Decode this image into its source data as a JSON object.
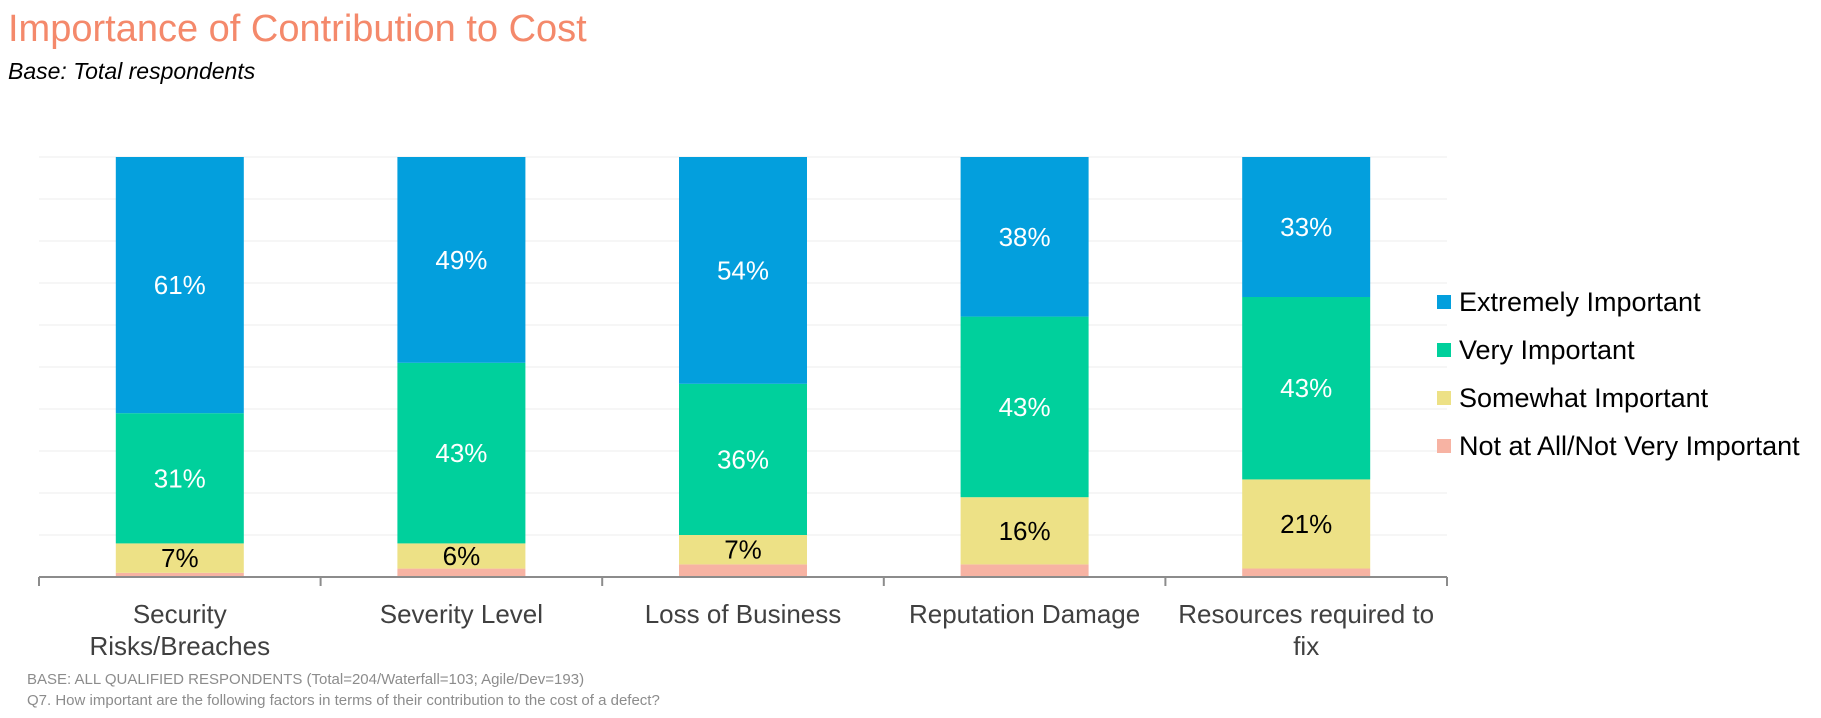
{
  "header": {
    "title": "Importance of Contribution to Cost",
    "subtitle": "Base: Total respondents"
  },
  "footnotes": {
    "base": "BASE: ALL QUALIFIED RESPONDENTS (Total=204/Waterfall=103; Agile/Dev=193)",
    "question": "Q7. How important are the following factors in terms of their contribution to the cost of a defect?"
  },
  "chart_data": {
    "type": "bar",
    "stacked": true,
    "percent_stacked": true,
    "title": "Importance of Contribution to Cost",
    "subtitle": "Base: Total respondents",
    "categories": [
      [
        "Security",
        "Risks/Breaches"
      ],
      [
        "Severity Level"
      ],
      [
        "Loss of Business"
      ],
      [
        "Reputation Damage"
      ],
      [
        "Resources required to",
        "fix"
      ]
    ],
    "series": [
      {
        "name": "Not at All/Not Very Important",
        "color": "#f7b3a3",
        "values": [
          1,
          2,
          3,
          3,
          2
        ],
        "labels": [
          "",
          "",
          "",
          "",
          ""
        ]
      },
      {
        "name": "Somewhat Important",
        "color": "#ede186",
        "values": [
          7,
          6,
          7,
          16,
          21
        ],
        "labels": [
          "7%",
          "6%",
          "7%",
          "16%",
          "21%"
        ],
        "label_color": "#000000"
      },
      {
        "name": "Very Important",
        "color": "#00d09c",
        "values": [
          31,
          43,
          36,
          43,
          43
        ],
        "labels": [
          "31%",
          "43%",
          "36%",
          "43%",
          "43%"
        ],
        "label_color": "#ffffff"
      },
      {
        "name": "Extremely Important",
        "color": "#039fdd",
        "values": [
          61,
          49,
          54,
          38,
          33
        ],
        "labels": [
          "61%",
          "49%",
          "54%",
          "38%",
          "33%"
        ],
        "label_color": "#ffffff"
      }
    ],
    "legend_order": [
      "Extremely Important",
      "Very Important",
      "Somewhat Important",
      "Not at All/Not Very Important"
    ],
    "ylim": [
      0,
      100
    ],
    "grid": true,
    "legend": "right"
  }
}
